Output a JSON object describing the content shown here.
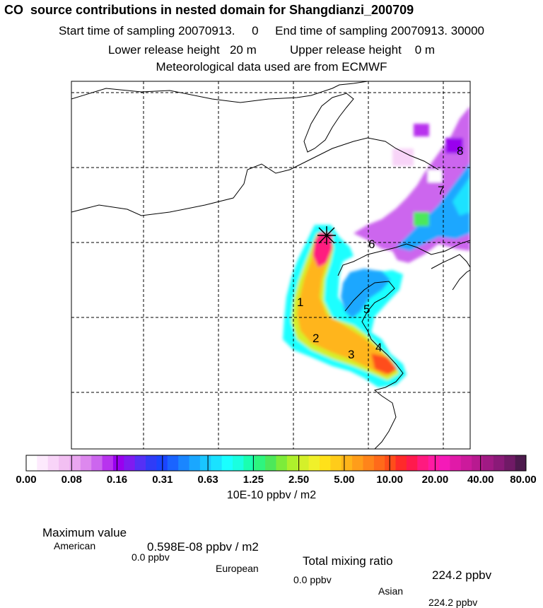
{
  "title": "CO  source contributions in nested domain for Shangdianzi_200709",
  "sampling": {
    "start_label": "Start time of sampling",
    "start_value": "20070913.     0",
    "end_label": "End time of sampling",
    "end_value": "20070913. 30000"
  },
  "release": {
    "lower_label": "Lower release height",
    "lower_value": "20 m",
    "upper_label": "Upper release height",
    "upper_value": "0 m"
  },
  "meteo_line": "Meteorological data used are from ECMWF",
  "colorbar": {
    "tick_labels": [
      "0.00",
      "0.08",
      "0.16",
      "0.31",
      "0.63",
      "1.25",
      "2.50",
      "5.00",
      "10.00",
      "20.00",
      "40.00",
      "80.00"
    ],
    "units": "10E-10 ppbv / m2",
    "colors": [
      "#ffffff",
      "#fdeafd",
      "#f8d4f8",
      "#f2bff2",
      "#eaa6f0",
      "#dd88ee",
      "#cc66ee",
      "#b833ee",
      "#9900ee",
      "#7f1bf0",
      "#5530f5",
      "#2f3cf7",
      "#1a45ff",
      "#1a64ff",
      "#1a86ff",
      "#1aa7ff",
      "#1ac6ff",
      "#1ae2ff",
      "#1affff",
      "#1affe0",
      "#1affb0",
      "#2ef57e",
      "#4ce85a",
      "#7dec3a",
      "#aef02c",
      "#d4f02a",
      "#f0f02a",
      "#ffe11a",
      "#ffcc1a",
      "#ffb51a",
      "#ff9d1a",
      "#ff841a",
      "#ff6a1a",
      "#ff4d1a",
      "#ff2a2a",
      "#ff1a4d",
      "#ff1a7f",
      "#ff1aa3",
      "#f51ab8",
      "#e01aa8",
      "#cc1a9c",
      "#b81a90",
      "#a01a84",
      "#8a1a78",
      "#701a66",
      "#4d1a4d"
    ]
  },
  "stats": {
    "max_label": "Maximum value",
    "max_value": "0.598E-08 ppbv / m2",
    "total_label": "Total mixing ratio",
    "total_value": "224.2 ppbv"
  },
  "regions": {
    "american_label": "American",
    "american_value": "0.0 ppbv",
    "european_label": "European",
    "european_value": "0.0 ppbv",
    "asian_label": "Asian",
    "asian_value": "224.2 ppbv"
  },
  "map": {
    "sector_labels": [
      "1",
      "2",
      "3",
      "4",
      "5",
      "6",
      "7",
      "8"
    ]
  }
}
